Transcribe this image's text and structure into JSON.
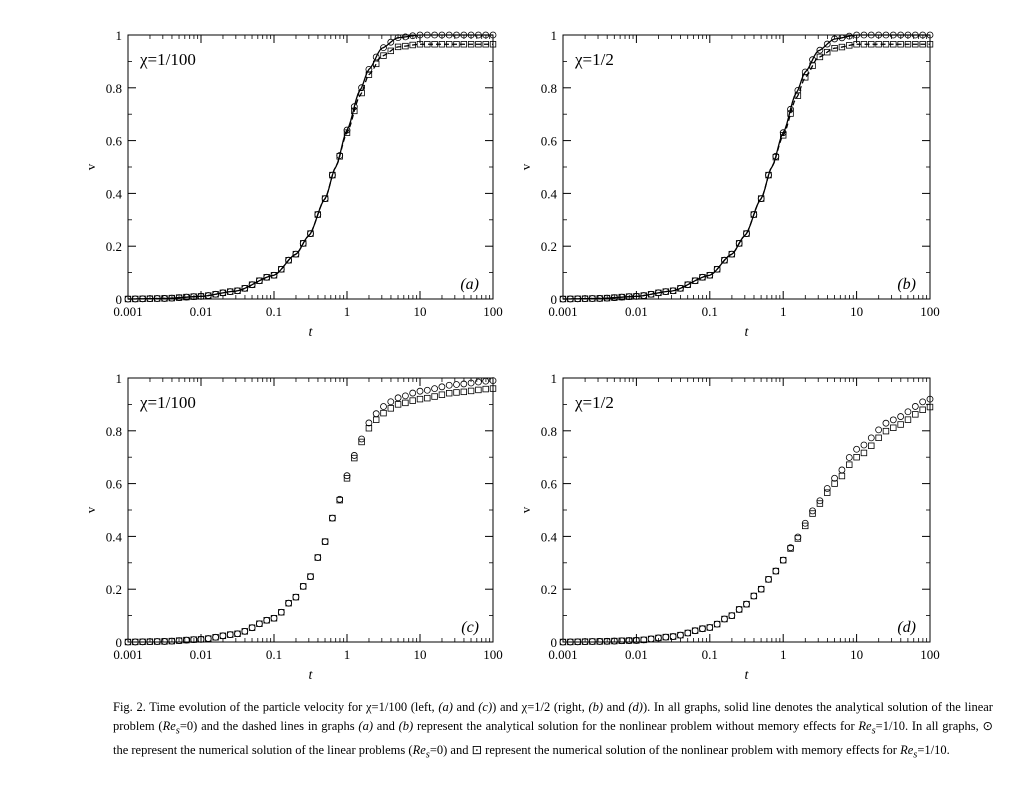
{
  "chart_data": [
    {
      "type": "line",
      "panel": "(a)",
      "title": "χ=1/100",
      "xlabel": "t",
      "ylabel": "v",
      "xscale": "log",
      "xlim": [
        0.001,
        100
      ],
      "ylim": [
        0,
        1
      ],
      "xticks": [
        "0.001",
        "0.01",
        "0.1",
        "1",
        "10",
        "100"
      ],
      "yticks": [
        "0",
        "0.2",
        "0.4",
        "0.6",
        "0.8",
        "1"
      ],
      "x": [
        0.001,
        0.003,
        0.01,
        0.03,
        0.1,
        0.2,
        0.3,
        0.5,
        0.7,
        1,
        1.5,
        2,
        3,
        5,
        10,
        30,
        100
      ],
      "series": [
        {
          "style": "solid-line",
          "values": [
            0.0,
            0.002,
            0.01,
            0.03,
            0.09,
            0.17,
            0.24,
            0.38,
            0.5,
            0.64,
            0.79,
            0.87,
            0.95,
            0.99,
            1.0,
            1.0,
            1.0
          ]
        },
        {
          "style": "dashed-line",
          "values": [
            0.0,
            0.002,
            0.01,
            0.03,
            0.09,
            0.17,
            0.24,
            0.38,
            0.5,
            0.63,
            0.77,
            0.85,
            0.92,
            0.955,
            0.965,
            0.965,
            0.965
          ]
        },
        {
          "style": "circle-markers",
          "values": [
            0.0,
            0.002,
            0.01,
            0.03,
            0.09,
            0.17,
            0.24,
            0.38,
            0.5,
            0.64,
            0.79,
            0.87,
            0.95,
            0.99,
            1.0,
            1.0,
            1.0
          ]
        },
        {
          "style": "square-markers",
          "values": [
            0.0,
            0.002,
            0.01,
            0.03,
            0.09,
            0.17,
            0.24,
            0.38,
            0.5,
            0.63,
            0.77,
            0.85,
            0.92,
            0.955,
            0.965,
            0.965,
            0.965
          ]
        }
      ]
    },
    {
      "type": "line",
      "panel": "(b)",
      "title": "χ=1/2",
      "xlabel": "t",
      "ylabel": "v",
      "xscale": "log",
      "xlim": [
        0.001,
        100
      ],
      "ylim": [
        0,
        1
      ],
      "xticks": [
        "0.001",
        "0.01",
        "0.1",
        "1",
        "10",
        "100"
      ],
      "yticks": [
        "0",
        "0.2",
        "0.4",
        "0.6",
        "0.8",
        "1"
      ],
      "x": [
        0.001,
        0.003,
        0.01,
        0.03,
        0.1,
        0.2,
        0.3,
        0.5,
        0.7,
        1,
        1.5,
        2,
        3,
        5,
        10,
        30,
        100
      ],
      "series": [
        {
          "style": "solid-line",
          "values": [
            0.0,
            0.002,
            0.01,
            0.03,
            0.09,
            0.17,
            0.24,
            0.38,
            0.5,
            0.63,
            0.78,
            0.86,
            0.94,
            0.985,
            1.0,
            1.0,
            1.0
          ]
        },
        {
          "style": "dashed-line",
          "values": [
            0.0,
            0.002,
            0.01,
            0.03,
            0.09,
            0.17,
            0.24,
            0.38,
            0.5,
            0.62,
            0.76,
            0.84,
            0.915,
            0.95,
            0.965,
            0.965,
            0.965
          ]
        },
        {
          "style": "circle-markers",
          "values": [
            0.0,
            0.002,
            0.01,
            0.03,
            0.09,
            0.17,
            0.24,
            0.38,
            0.5,
            0.63,
            0.78,
            0.86,
            0.94,
            0.985,
            1.0,
            1.0,
            1.0
          ]
        },
        {
          "style": "square-markers",
          "values": [
            0.0,
            0.002,
            0.01,
            0.03,
            0.09,
            0.17,
            0.24,
            0.38,
            0.5,
            0.62,
            0.76,
            0.84,
            0.915,
            0.95,
            0.965,
            0.965,
            0.965
          ]
        }
      ]
    },
    {
      "type": "line",
      "panel": "(c)",
      "title": "χ=1/100",
      "xlabel": "t",
      "ylabel": "v",
      "xscale": "log",
      "xlim": [
        0.001,
        100
      ],
      "ylim": [
        0,
        1
      ],
      "xticks": [
        "0.001",
        "0.01",
        "0.1",
        "1",
        "10",
        "100"
      ],
      "yticks": [
        "0",
        "0.2",
        "0.4",
        "0.6",
        "0.8",
        "1"
      ],
      "x": [
        0.001,
        0.003,
        0.01,
        0.03,
        0.1,
        0.2,
        0.3,
        0.5,
        0.7,
        1,
        1.5,
        2,
        3,
        5,
        10,
        30,
        100
      ],
      "series": [
        {
          "style": "circle-markers",
          "values": [
            0.0,
            0.002,
            0.01,
            0.03,
            0.09,
            0.17,
            0.24,
            0.38,
            0.5,
            0.63,
            0.76,
            0.83,
            0.89,
            0.925,
            0.95,
            0.975,
            0.99
          ]
        },
        {
          "style": "square-markers",
          "values": [
            0.0,
            0.002,
            0.01,
            0.03,
            0.09,
            0.17,
            0.24,
            0.38,
            0.5,
            0.62,
            0.75,
            0.81,
            0.865,
            0.9,
            0.92,
            0.945,
            0.96
          ]
        }
      ]
    },
    {
      "type": "line",
      "panel": "(d)",
      "title": "χ=1/2",
      "xlabel": "t",
      "ylabel": "v",
      "xscale": "log",
      "xlim": [
        0.001,
        100
      ],
      "ylim": [
        0,
        1
      ],
      "xticks": [
        "0.001",
        "0.01",
        "0.1",
        "1",
        "10",
        "100"
      ],
      "yticks": [
        "0",
        "0.2",
        "0.4",
        "0.6",
        "0.8",
        "1"
      ],
      "x": [
        0.001,
        0.003,
        0.01,
        0.03,
        0.1,
        0.2,
        0.3,
        0.5,
        0.7,
        1,
        1.5,
        2,
        3,
        5,
        10,
        30,
        100
      ],
      "series": [
        {
          "style": "circle-markers",
          "values": [
            0.0,
            0.002,
            0.006,
            0.02,
            0.055,
            0.1,
            0.14,
            0.2,
            0.25,
            0.31,
            0.39,
            0.45,
            0.53,
            0.62,
            0.73,
            0.84,
            0.92
          ]
        },
        {
          "style": "square-markers",
          "values": [
            0.0,
            0.002,
            0.006,
            0.02,
            0.055,
            0.1,
            0.14,
            0.2,
            0.25,
            0.31,
            0.385,
            0.44,
            0.52,
            0.6,
            0.7,
            0.81,
            0.89
          ]
        }
      ]
    }
  ],
  "caption": {
    "p1": "Fig. 2. Time evolution of the particle velocity for χ=1/100 (left, ",
    "i1": "(a)",
    "p2": " and ",
    "i2": "(c)",
    "p3": ") and χ=1/2 (right, ",
    "i3": "(b)",
    "p4": " and ",
    "i4": "(d)",
    "p5": "). In all graphs, solid line denotes the analytical solution of the linear problem (",
    "re1": "Re",
    "s1": "s",
    "p6": "=0) and the dashed lines in graphs ",
    "i5": "(a)",
    "p7": " and ",
    "i6": "(b)",
    "p8": " represent the analytical solution for the nonlinear problem without memory effects for ",
    "re2": "Re",
    "s2": "s",
    "p9": "=1/10. In all graphs, ⊙ the represent the numerical solution of the linear problems (",
    "re3": "Re",
    "s3": "s",
    "p10": "=0) and ⊡ represent the numerical solution of the nonlinear problem with memory effects for ",
    "re4": "Re",
    "s4": "s",
    "p11": "=1/10."
  }
}
